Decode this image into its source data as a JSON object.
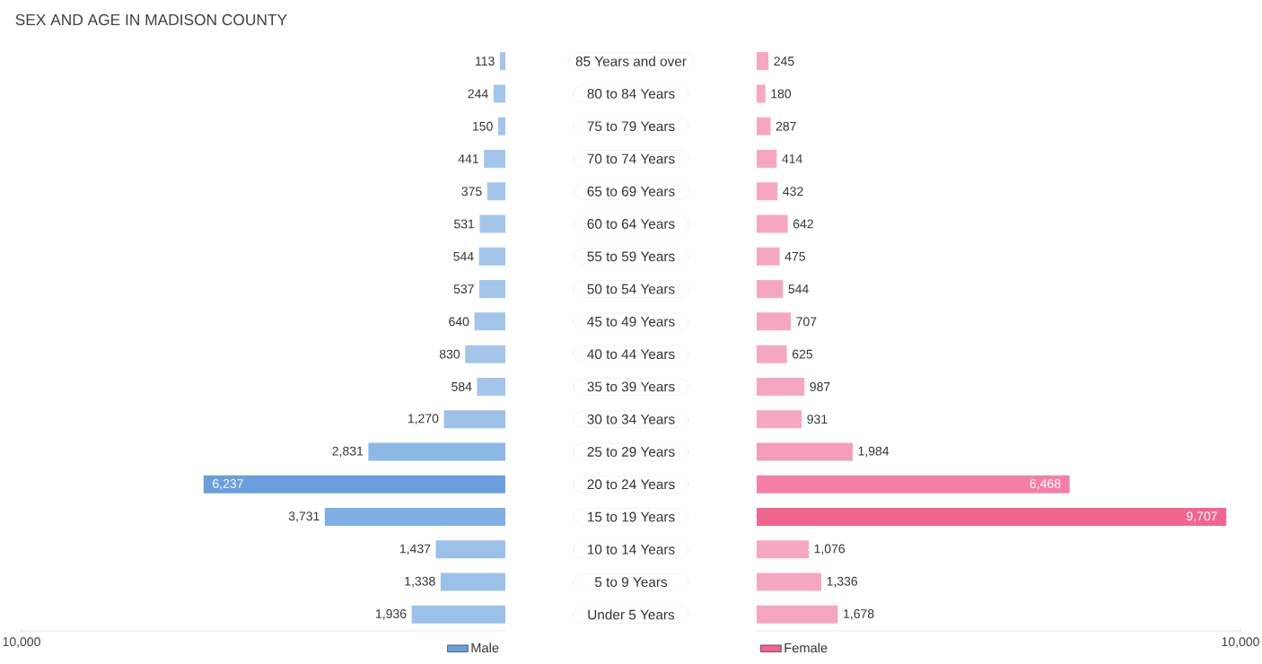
{
  "chart_data": [
    {
      "type": "bar",
      "orientation": "horizontal",
      "title": "SEX AND AGE IN MADISON COUNTY",
      "categories": [
        "85 Years and over",
        "80 to 84 Years",
        "75 to 79 Years",
        "70 to 74 Years",
        "65 to 69 Years",
        "60 to 64 Years",
        "55 to 59 Years",
        "50 to 54 Years",
        "45 to 49 Years",
        "40 to 44 Years",
        "35 to 39 Years",
        "30 to 34 Years",
        "25 to 29 Years",
        "20 to 24 Years",
        "15 to 19 Years",
        "10 to 14 Years",
        "5 to 9 Years",
        "Under 5 Years"
      ],
      "series": [
        {
          "name": "Male",
          "color": "#6a9fdb",
          "values": [
            113,
            244,
            150,
            441,
            375,
            531,
            544,
            537,
            640,
            830,
            584,
            1270,
            2831,
            6237,
            3731,
            1437,
            1338,
            1936
          ],
          "value_labels": [
            "113",
            "244",
            "150",
            "441",
            "375",
            "531",
            "544",
            "537",
            "640",
            "830",
            "584",
            "1,270",
            "2,831",
            "6,237",
            "3,731",
            "1,437",
            "1,338",
            "1,936"
          ],
          "colors": [
            "#a3c5ea",
            "#a3c5ea",
            "#a3c5ea",
            "#a3c5ea",
            "#a3c5ea",
            "#a3c5ea",
            "#a3c5ea",
            "#a3c5ea",
            "#a3c5ea",
            "#a3c5ea",
            "#a3c5ea",
            "#9cc1e8",
            "#8cb8e6",
            "#6a9fdb",
            "#7eaee2",
            "#9cc1e8",
            "#9cc1e8",
            "#9cc1e8"
          ]
        }
      ],
      "xlim": [
        10000,
        0
      ],
      "xticks": [
        {
          "value": 10000,
          "label": "10,000"
        }
      ],
      "legend": "bottom right"
    },
    {
      "type": "bar",
      "orientation": "horizontal",
      "categories": [
        null,
        null,
        null,
        null,
        null,
        null,
        null,
        null,
        null,
        null,
        null,
        null,
        null,
        null,
        null,
        null,
        null,
        null
      ],
      "series": [
        {
          "name": "Female",
          "color": "#f0668f",
          "values": [
            245,
            180,
            287,
            414,
            432,
            642,
            475,
            544,
            707,
            625,
            987,
            931,
            1984,
            6468,
            9707,
            1076,
            1336,
            1678
          ],
          "value_labels": [
            "245",
            "180",
            "287",
            "414",
            "432",
            "642",
            "475",
            "544",
            "707",
            "625",
            "987",
            "931",
            "1,984",
            "6,468",
            "9,707",
            "1,076",
            "1,336",
            "1,678"
          ],
          "colors": [
            "#f5a7c2",
            "#f5a7c2",
            "#f5a7c2",
            "#f5a7c2",
            "#f5a7c2",
            "#f5a7c2",
            "#f5a7c2",
            "#f5a7c2",
            "#f5a7c2",
            "#f5a7c2",
            "#f5a7c2",
            "#f5a7c2",
            "#f49dbb",
            "#f480a6",
            "#f0668f",
            "#f5a7c2",
            "#f5a7c2",
            "#f5a7c2"
          ]
        }
      ],
      "xlim": [
        0,
        10000
      ],
      "xticks": [
        {
          "value": 10000,
          "label": "10,000"
        }
      ],
      "legend": "bottom left"
    }
  ]
}
